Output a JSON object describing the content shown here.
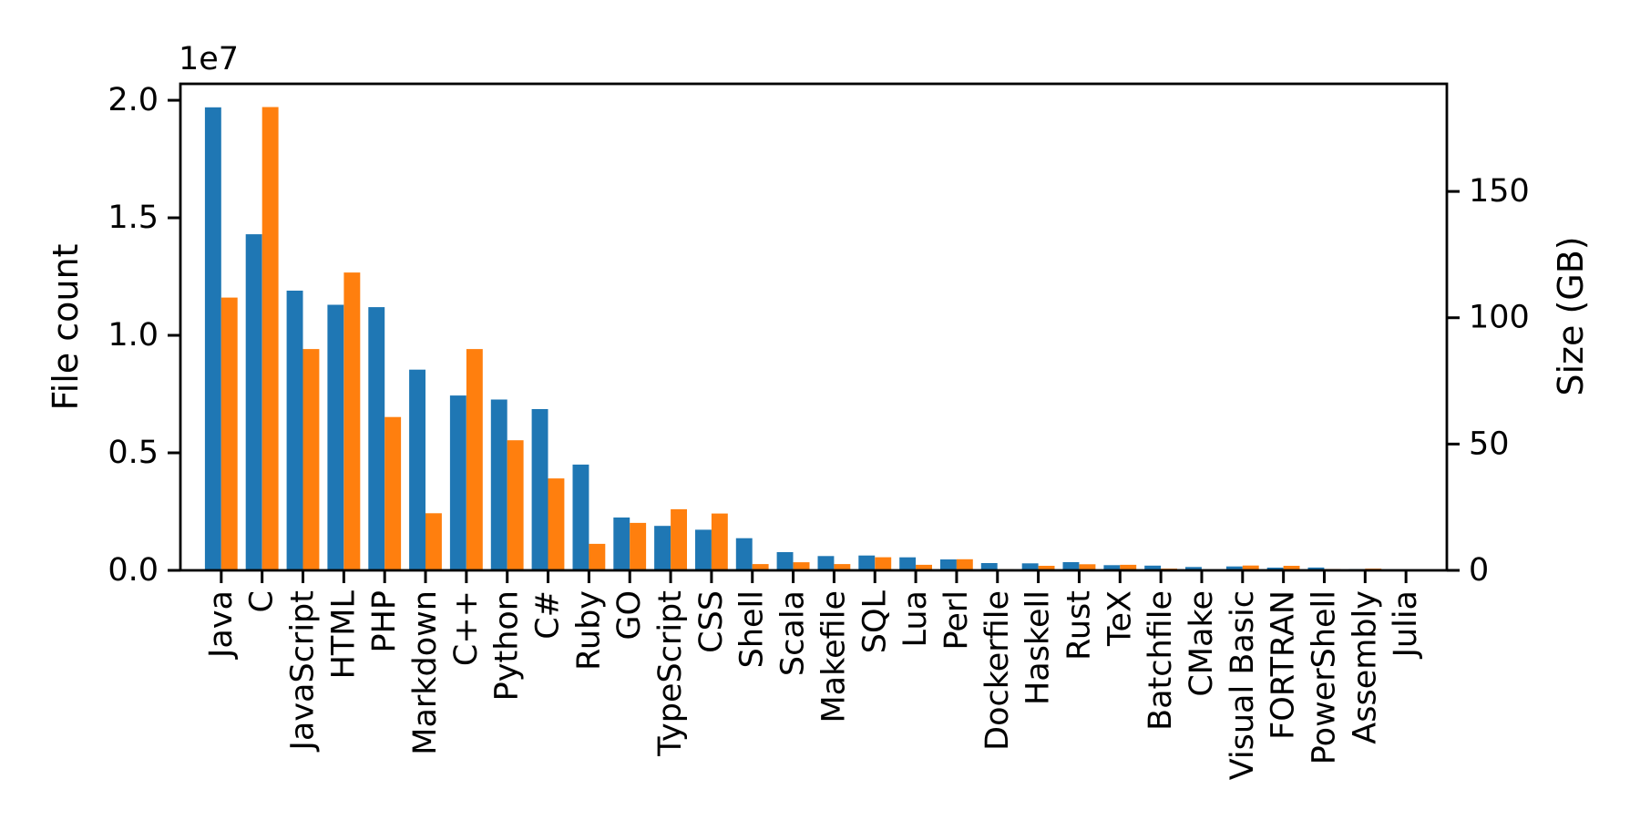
{
  "style": {
    "background": "#ffffff",
    "spine_color": "#000000",
    "tick_color": "#000000",
    "text_color": "#000000",
    "blue": "#1f77b4",
    "orange": "#ff7f0e"
  },
  "chart_data": {
    "type": "bar",
    "title": "",
    "offset_text": "1e7",
    "ylabel_left": "File count",
    "ylabel_right": "Size (GB)",
    "categories": [
      "Java",
      "C",
      "JavaScript",
      "HTML",
      "PHP",
      "Markdown",
      "C++",
      "Python",
      "C#",
      "Ruby",
      "GO",
      "TypeScript",
      "CSS",
      "Shell",
      "Scala",
      "Makefile",
      "SQL",
      "Lua",
      "Perl",
      "Dockerfile",
      "Haskell",
      "Rust",
      "TeX",
      "Batchfile",
      "CMake",
      "Visual Basic",
      "FORTRAN",
      "PowerShell",
      "Assembly",
      "Julia"
    ],
    "series": [
      {
        "name": "File count",
        "axis": "left",
        "color": "#1f77b4",
        "values": [
          19700000,
          14300000,
          11900000,
          11300000,
          11200000,
          8540000,
          7440000,
          7270000,
          6860000,
          4500000,
          2250000,
          1890000,
          1730000,
          1370000,
          775000,
          610000,
          630000,
          555000,
          465000,
          310000,
          300000,
          350000,
          220000,
          200000,
          145000,
          165000,
          115000,
          120000,
          50000,
          40000
        ]
      },
      {
        "name": "Size (GB)",
        "axis": "right",
        "color": "#ff7f0e",
        "values": [
          108,
          183.4,
          87.6,
          117.9,
          60.7,
          22.6,
          87.6,
          51.5,
          36.4,
          10.5,
          18.8,
          24.2,
          22.5,
          2.5,
          3.2,
          2.5,
          5.2,
          2.2,
          4.4,
          0.4,
          1.8,
          2.4,
          2.2,
          0.7,
          0.3,
          1.9,
          1.8,
          0.5,
          0.7,
          0.3
        ]
      }
    ],
    "xlim": [
      -1,
      30
    ],
    "ylim_left": [
      0,
      20700000
    ],
    "ylim_right": [
      0,
      192.6
    ],
    "bar_width_units": 0.4,
    "grid": false,
    "legend": null,
    "axes": {
      "left": {
        "tick_labels": [
          "0.0",
          "0.5",
          "1.0",
          "1.5",
          "2.0"
        ],
        "tick_values": [
          0,
          5000000,
          10000000,
          15000000,
          20000000
        ],
        "label_color": "#1f77b4"
      },
      "right": {
        "tick_labels": [
          "0",
          "50",
          "100",
          "150"
        ],
        "tick_values": [
          0,
          50,
          100,
          150
        ],
        "label_color": "#ff7f0e"
      },
      "x": {
        "tick_rotation": 90
      }
    }
  }
}
